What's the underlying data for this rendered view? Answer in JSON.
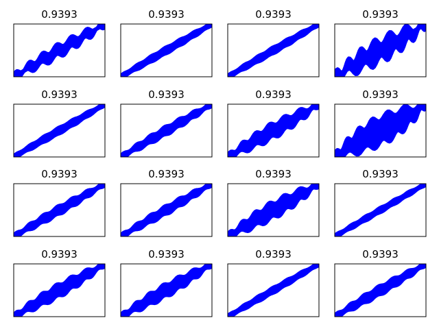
{
  "chart_data": [
    {
      "type": "line",
      "title": "0.9393",
      "x": [
        0,
        1
      ],
      "xlim": [
        0,
        1
      ],
      "ylim": [
        0,
        1
      ],
      "grid": false,
      "color": "#0000ff",
      "series": [
        {
          "values": [
            0,
            1
          ],
          "spread": 0.1,
          "waviness": 0.05
        }
      ]
    },
    {
      "type": "line",
      "title": "0.9393",
      "x": [
        0,
        1
      ],
      "xlim": [
        0,
        1
      ],
      "ylim": [
        0,
        1
      ],
      "grid": false,
      "color": "#0000ff",
      "series": [
        {
          "values": [
            0,
            1
          ],
          "spread": 0.05,
          "waviness": 0.01
        }
      ]
    },
    {
      "type": "line",
      "title": "0.9393",
      "x": [
        0,
        1
      ],
      "xlim": [
        0,
        1
      ],
      "ylim": [
        0,
        1
      ],
      "grid": false,
      "color": "#0000ff",
      "series": [
        {
          "values": [
            0,
            1
          ],
          "spread": 0.05,
          "waviness": 0.01
        }
      ]
    },
    {
      "type": "line",
      "title": "0.9393",
      "x": [
        0,
        1
      ],
      "xlim": [
        0,
        1
      ],
      "ylim": [
        0,
        1
      ],
      "grid": false,
      "color": "#0000ff",
      "series": [
        {
          "values": [
            0,
            1
          ],
          "spread": 0.22,
          "waviness": 0.08
        }
      ]
    },
    {
      "type": "line",
      "title": "0.9393",
      "x": [
        0,
        1
      ],
      "xlim": [
        0,
        1
      ],
      "ylim": [
        0,
        1
      ],
      "grid": false,
      "color": "#0000ff",
      "series": [
        {
          "values": [
            0,
            1
          ],
          "spread": 0.05,
          "waviness": 0.01
        }
      ]
    },
    {
      "type": "line",
      "title": "0.9393",
      "x": [
        0,
        1
      ],
      "xlim": [
        0,
        1
      ],
      "ylim": [
        0,
        1
      ],
      "grid": false,
      "color": "#0000ff",
      "series": [
        {
          "values": [
            0,
            1
          ],
          "spread": 0.07,
          "waviness": 0.02
        }
      ]
    },
    {
      "type": "line",
      "title": "0.9393",
      "x": [
        0,
        1
      ],
      "xlim": [
        0,
        1
      ],
      "ylim": [
        0,
        1
      ],
      "grid": false,
      "color": "#0000ff",
      "series": [
        {
          "values": [
            0,
            1
          ],
          "spread": 0.14,
          "waviness": 0.04
        }
      ]
    },
    {
      "type": "line",
      "title": "0.9393",
      "x": [
        0,
        1
      ],
      "xlim": [
        0,
        1
      ],
      "ylim": [
        0,
        1
      ],
      "grid": false,
      "color": "#0000ff",
      "series": [
        {
          "values": [
            0,
            1
          ],
          "spread": 0.3,
          "waviness": 0.06
        }
      ]
    },
    {
      "type": "line",
      "title": "0.9393",
      "x": [
        0,
        1
      ],
      "xlim": [
        0,
        1
      ],
      "ylim": [
        0,
        1
      ],
      "grid": false,
      "color": "#0000ff",
      "series": [
        {
          "values": [
            0,
            1
          ],
          "spread": 0.07,
          "waviness": 0.02
        }
      ]
    },
    {
      "type": "line",
      "title": "0.9393",
      "x": [
        0,
        1
      ],
      "xlim": [
        0,
        1
      ],
      "ylim": [
        0,
        1
      ],
      "grid": false,
      "color": "#0000ff",
      "series": [
        {
          "values": [
            0,
            1
          ],
          "spread": 0.07,
          "waviness": 0.02
        }
      ]
    },
    {
      "type": "line",
      "title": "0.9393",
      "x": [
        0,
        1
      ],
      "xlim": [
        0,
        1
      ],
      "ylim": [
        0,
        1
      ],
      "grid": false,
      "color": "#0000ff",
      "series": [
        {
          "values": [
            0,
            1
          ],
          "spread": 0.16,
          "waviness": 0.04
        }
      ]
    },
    {
      "type": "line",
      "title": "0.9393",
      "x": [
        0,
        1
      ],
      "xlim": [
        0,
        1
      ],
      "ylim": [
        0,
        1
      ],
      "grid": false,
      "color": "#0000ff",
      "series": [
        {
          "values": [
            0,
            1
          ],
          "spread": 0.03,
          "waviness": 0.01
        }
      ]
    },
    {
      "type": "line",
      "title": "0.9393",
      "x": [
        0,
        1
      ],
      "xlim": [
        0,
        1
      ],
      "ylim": [
        0,
        1
      ],
      "grid": false,
      "color": "#0000ff",
      "series": [
        {
          "values": [
            0,
            1
          ],
          "spread": 0.12,
          "waviness": 0.03
        }
      ]
    },
    {
      "type": "line",
      "title": "0.9393",
      "x": [
        0,
        1
      ],
      "xlim": [
        0,
        1
      ],
      "ylim": [
        0,
        1
      ],
      "grid": false,
      "color": "#0000ff",
      "series": [
        {
          "values": [
            0,
            1
          ],
          "spread": 0.12,
          "waviness": 0.03
        }
      ]
    },
    {
      "type": "line",
      "title": "0.9393",
      "x": [
        0,
        1
      ],
      "xlim": [
        0,
        1
      ],
      "ylim": [
        0,
        1
      ],
      "grid": false,
      "color": "#0000ff",
      "series": [
        {
          "values": [
            0,
            1
          ],
          "spread": 0.04,
          "waviness": 0.01
        }
      ]
    },
    {
      "type": "line",
      "title": "0.9393",
      "x": [
        0,
        1
      ],
      "xlim": [
        0,
        1
      ],
      "ylim": [
        0,
        1
      ],
      "grid": false,
      "color": "#0000ff",
      "series": [
        {
          "values": [
            0,
            1
          ],
          "spread": 0.08,
          "waviness": 0.02
        }
      ]
    }
  ]
}
